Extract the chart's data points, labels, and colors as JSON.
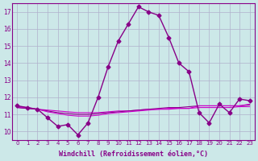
{
  "xlabel": "Windchill (Refroidissement éolien,°C)",
  "x_hours": [
    0,
    1,
    2,
    3,
    4,
    5,
    6,
    7,
    8,
    9,
    10,
    11,
    12,
    13,
    14,
    15,
    16,
    17,
    18,
    19,
    20,
    21,
    22,
    23
  ],
  "line1": [
    11.5,
    11.4,
    11.3,
    10.8,
    10.3,
    10.4,
    9.8,
    10.5,
    12.0,
    13.8,
    15.3,
    16.3,
    17.3,
    17.0,
    16.8,
    15.5,
    14.0,
    13.5,
    11.1,
    10.5,
    11.6,
    11.1,
    11.9,
    11.8
  ],
  "line2": [
    11.4,
    11.35,
    11.3,
    11.25,
    11.2,
    11.15,
    11.1,
    11.1,
    11.1,
    11.15,
    11.2,
    11.2,
    11.25,
    11.3,
    11.3,
    11.3,
    11.35,
    11.35,
    11.4,
    11.4,
    11.4,
    11.4,
    11.45,
    11.45
  ],
  "line3": [
    11.4,
    11.35,
    11.3,
    11.2,
    11.1,
    11.05,
    11.0,
    11.0,
    11.05,
    11.1,
    11.15,
    11.2,
    11.25,
    11.3,
    11.35,
    11.4,
    11.4,
    11.45,
    11.5,
    11.5,
    11.5,
    11.5,
    11.5,
    11.55
  ],
  "line4": [
    11.45,
    11.4,
    11.3,
    11.15,
    11.05,
    10.95,
    10.9,
    10.9,
    10.95,
    11.05,
    11.1,
    11.15,
    11.2,
    11.25,
    11.3,
    11.35,
    11.35,
    11.35,
    11.5,
    11.5,
    11.5,
    11.5,
    11.5,
    11.6
  ],
  "ylim": [
    9.5,
    17.5
  ],
  "yticks": [
    10,
    11,
    12,
    13,
    14,
    15,
    16,
    17
  ],
  "bg_color": "#cce8e8",
  "grid_color": "#b0b0cc",
  "line_color": "#880088",
  "line_color2": "#cc00cc",
  "marker": "D",
  "marker_size": 2.5,
  "line_width": 1.0
}
